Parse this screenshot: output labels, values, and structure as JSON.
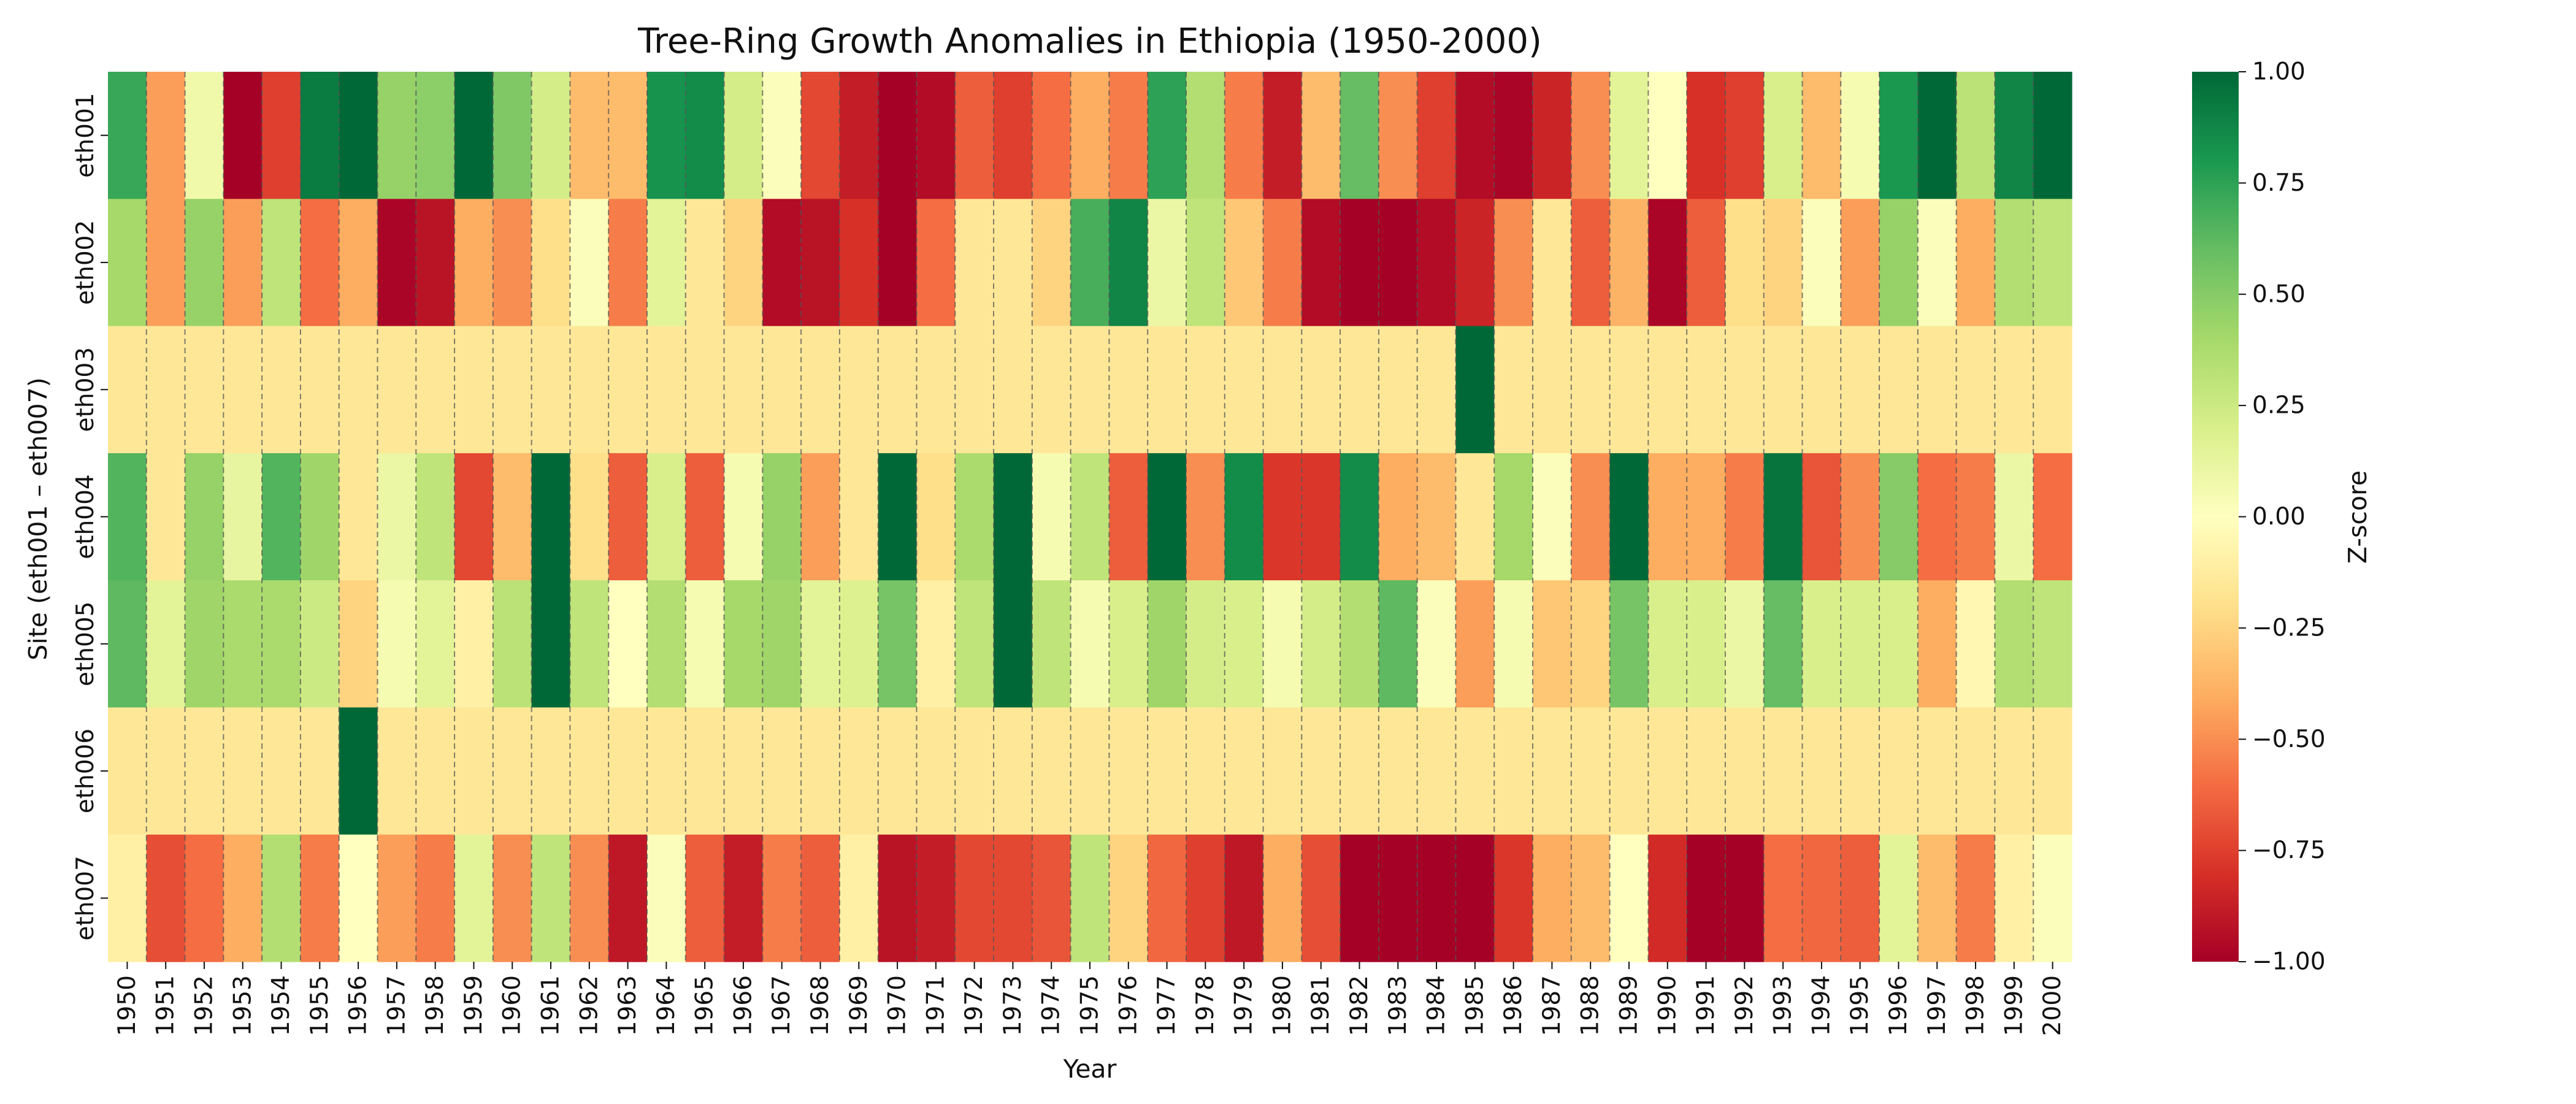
{
  "chart_data": {
    "type": "heatmap",
    "title": "Tree-Ring Growth Anomalies in Ethiopia (1950-2000)",
    "xlabel": "Year",
    "ylabel": "Site (eth001 – eth007)",
    "x": [
      "1950",
      "1951",
      "1952",
      "1953",
      "1954",
      "1955",
      "1956",
      "1957",
      "1958",
      "1959",
      "1960",
      "1961",
      "1962",
      "1963",
      "1964",
      "1965",
      "1966",
      "1967",
      "1968",
      "1969",
      "1970",
      "1971",
      "1972",
      "1973",
      "1974",
      "1975",
      "1976",
      "1977",
      "1978",
      "1979",
      "1980",
      "1981",
      "1982",
      "1983",
      "1984",
      "1985",
      "1986",
      "1987",
      "1988",
      "1989",
      "1990",
      "1991",
      "1992",
      "1993",
      "1994",
      "1995",
      "1996",
      "1997",
      "1998",
      "1999",
      "2000"
    ],
    "y": [
      "eth001",
      "eth002",
      "eth003",
      "eth004",
      "eth005",
      "eth006",
      "eth007"
    ],
    "values": [
      [
        0.72,
        -0.45,
        0.08,
        -1.0,
        -0.75,
        0.92,
        1.0,
        0.45,
        0.48,
        1.0,
        0.52,
        0.22,
        -0.35,
        -0.35,
        0.82,
        0.85,
        0.22,
        0.02,
        -0.72,
        -0.88,
        -1.0,
        -0.95,
        -0.65,
        -0.75,
        -0.6,
        -0.4,
        -0.55,
        0.75,
        0.35,
        -0.55,
        -0.88,
        -0.35,
        0.6,
        -0.5,
        -0.75,
        -0.95,
        -0.98,
        -0.85,
        -0.5,
        0.15,
        0.0,
        -0.8,
        -0.75,
        0.2,
        -0.35,
        0.05,
        0.8,
        1.0,
        0.32,
        0.88,
        1.0
      ],
      [
        0.4,
        -0.45,
        0.45,
        -0.45,
        0.3,
        -0.6,
        -0.4,
        -0.98,
        -0.92,
        -0.4,
        -0.5,
        -0.2,
        0.02,
        -0.55,
        0.15,
        -0.15,
        -0.25,
        -0.95,
        -0.92,
        -0.8,
        -1.0,
        -0.6,
        -0.15,
        -0.15,
        -0.25,
        0.68,
        0.88,
        0.1,
        0.3,
        -0.3,
        -0.55,
        -0.95,
        -1.0,
        -1.0,
        -0.95,
        -0.85,
        -0.5,
        -0.15,
        -0.65,
        -0.38,
        -0.98,
        -0.65,
        -0.2,
        -0.25,
        0.02,
        -0.45,
        0.45,
        0.02,
        -0.4,
        0.35,
        0.3
      ],
      [
        -0.15,
        -0.15,
        -0.15,
        -0.15,
        -0.15,
        -0.15,
        -0.15,
        -0.15,
        -0.15,
        -0.15,
        -0.15,
        -0.15,
        -0.15,
        -0.15,
        -0.15,
        -0.15,
        -0.15,
        -0.15,
        -0.15,
        -0.15,
        -0.15,
        -0.15,
        -0.15,
        -0.15,
        -0.15,
        -0.15,
        -0.15,
        -0.15,
        -0.15,
        -0.15,
        -0.15,
        -0.15,
        -0.15,
        -0.15,
        -0.15,
        1.0,
        -0.15,
        -0.15,
        -0.15,
        -0.15,
        -0.15,
        -0.15,
        -0.15,
        -0.15,
        -0.15,
        -0.15,
        -0.15,
        -0.15,
        -0.15,
        -0.15,
        -0.15
      ],
      [
        0.65,
        -0.15,
        0.45,
        0.12,
        0.65,
        0.42,
        -0.15,
        0.1,
        0.3,
        -0.72,
        -0.35,
        1.0,
        -0.2,
        -0.65,
        0.2,
        -0.65,
        0.05,
        0.45,
        -0.45,
        -0.15,
        1.0,
        -0.2,
        0.38,
        1.0,
        0.05,
        0.3,
        -0.65,
        1.0,
        -0.5,
        0.85,
        -0.78,
        -0.78,
        0.85,
        -0.4,
        -0.35,
        -0.15,
        0.4,
        0.02,
        -0.5,
        1.0,
        -0.4,
        -0.4,
        -0.55,
        0.95,
        -0.68,
        -0.5,
        0.5,
        -0.6,
        -0.55,
        0.1,
        -0.6
      ],
      [
        0.62,
        0.15,
        0.42,
        0.38,
        0.38,
        0.25,
        -0.25,
        0.05,
        0.15,
        -0.1,
        0.32,
        1.0,
        0.3,
        0.0,
        0.35,
        0.05,
        0.4,
        0.42,
        0.15,
        0.18,
        0.55,
        -0.1,
        0.3,
        1.0,
        0.3,
        0.05,
        0.2,
        0.42,
        0.22,
        0.2,
        0.05,
        0.22,
        0.35,
        0.62,
        0.02,
        -0.45,
        0.05,
        -0.3,
        -0.25,
        0.55,
        0.2,
        0.2,
        0.1,
        0.6,
        0.2,
        0.2,
        0.2,
        -0.4,
        -0.05,
        0.35,
        0.3
      ],
      [
        -0.15,
        -0.15,
        -0.15,
        -0.15,
        -0.15,
        -0.15,
        1.0,
        -0.15,
        -0.15,
        -0.15,
        -0.15,
        -0.15,
        -0.15,
        -0.15,
        -0.15,
        -0.15,
        -0.15,
        -0.15,
        -0.15,
        -0.15,
        -0.15,
        -0.15,
        -0.15,
        -0.15,
        -0.15,
        -0.15,
        -0.15,
        -0.15,
        -0.15,
        -0.15,
        -0.15,
        -0.15,
        -0.15,
        -0.15,
        -0.15,
        -0.15,
        -0.15,
        -0.15,
        -0.15,
        -0.15,
        -0.15,
        -0.15,
        -0.15,
        -0.15,
        -0.15,
        -0.15,
        -0.15,
        -0.15,
        -0.15,
        -0.15,
        -0.15
      ],
      [
        -0.1,
        -0.7,
        -0.6,
        -0.4,
        0.35,
        -0.55,
        0.0,
        -0.45,
        -0.55,
        0.15,
        -0.5,
        0.3,
        -0.5,
        -0.9,
        0.02,
        -0.65,
        -0.88,
        -0.55,
        -0.65,
        -0.1,
        -0.92,
        -0.88,
        -0.72,
        -0.72,
        -0.68,
        0.3,
        -0.25,
        -0.62,
        -0.75,
        -0.9,
        -0.4,
        -0.7,
        -1.0,
        -1.0,
        -1.0,
        -1.0,
        -0.78,
        -0.4,
        -0.35,
        0.0,
        -0.82,
        -1.0,
        -1.0,
        -0.6,
        -0.62,
        -0.65,
        0.15,
        -0.35,
        -0.55,
        -0.1,
        0.02
      ]
    ],
    "colorbar": {
      "label": "Z-score",
      "min": -1.0,
      "max": 1.0,
      "ticks": [
        "1.00",
        "0.75",
        "0.50",
        "0.25",
        "0.00",
        "−0.25",
        "−0.50",
        "−0.75",
        "−1.00"
      ],
      "colormap": "RdYlGn"
    },
    "grid": "dashed vertical lines between year columns"
  }
}
